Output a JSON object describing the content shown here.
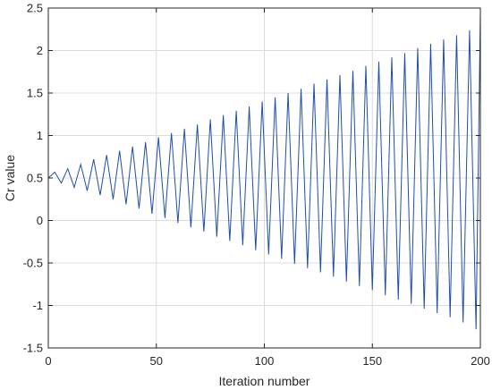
{
  "chart_data": {
    "type": "line",
    "title": "",
    "xlabel": "Iteration number",
    "ylabel": "Cr value",
    "xlim": [
      0,
      200
    ],
    "ylim": [
      -1.5,
      2.5
    ],
    "xticks": [
      0,
      50,
      100,
      150,
      200
    ],
    "xtick_labels": [
      "0",
      "50",
      "100",
      "150",
      "200"
    ],
    "yticks": [
      -1.5,
      -1,
      -0.5,
      0,
      0.5,
      1,
      1.5,
      2,
      2.5
    ],
    "ytick_labels": [
      "-1.5",
      "-1",
      "-0.5",
      "0",
      "0.5",
      "1",
      "1.5",
      "2",
      "2.5"
    ],
    "grid": true,
    "series": [
      {
        "color": "#1f4ea8",
        "x": [
          0,
          3,
          6,
          9,
          12,
          15,
          18,
          21,
          24,
          27,
          30,
          33,
          36,
          39,
          42,
          45,
          48,
          51,
          54,
          57,
          60,
          63,
          66,
          69,
          72,
          75,
          78,
          81,
          84,
          87,
          90,
          93,
          96,
          99,
          102,
          105,
          108,
          111,
          114,
          117,
          120,
          123,
          126,
          129,
          132,
          135,
          138,
          141,
          144,
          147,
          150,
          153,
          156,
          159,
          162,
          165,
          168,
          171,
          174,
          177,
          180,
          183,
          186,
          189,
          192,
          195,
          198,
          200
        ],
        "values": [
          0.5,
          0.57,
          0.44,
          0.61,
          0.39,
          0.66,
          0.35,
          0.72,
          0.3,
          0.77,
          0.25,
          0.82,
          0.19,
          0.87,
          0.14,
          0.92,
          0.08,
          0.98,
          0.03,
          1.03,
          -0.03,
          1.08,
          -0.08,
          1.13,
          -0.13,
          1.19,
          -0.19,
          1.24,
          -0.24,
          1.29,
          -0.29,
          1.34,
          -0.35,
          1.4,
          -0.4,
          1.45,
          -0.45,
          1.5,
          -0.51,
          1.55,
          -0.56,
          1.61,
          -0.61,
          1.66,
          -0.66,
          1.71,
          -0.72,
          1.76,
          -0.77,
          1.82,
          -0.82,
          1.87,
          -0.88,
          1.92,
          -0.93,
          1.97,
          -0.98,
          2.03,
          -1.04,
          2.08,
          -1.09,
          2.13,
          -1.14,
          2.18,
          -1.2,
          2.24,
          -1.28,
          2.45
        ]
      }
    ]
  }
}
